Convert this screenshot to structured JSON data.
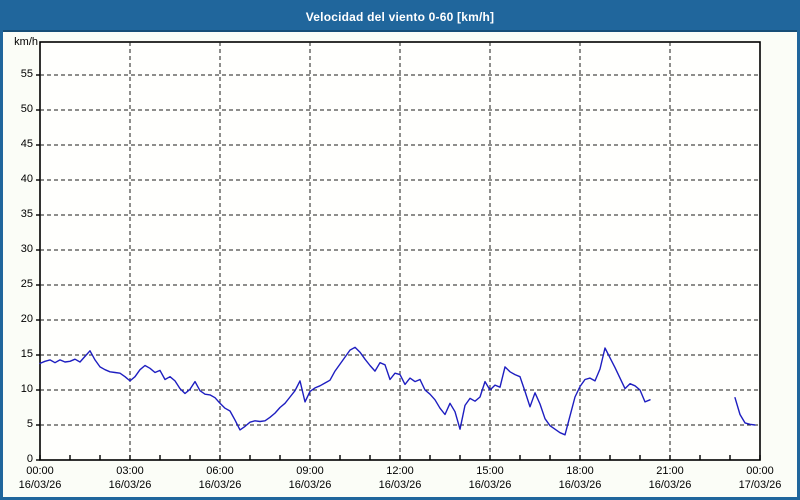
{
  "window": {
    "title": "Velocidad del viento 0-60 [km/h]"
  },
  "colors": {
    "frame": "#20669c",
    "titlebar": "#20669c",
    "titlebar_edge": "#174e77",
    "content_background": "#fbfdf7",
    "plot_background": "#fffffd",
    "axis": "#000000",
    "grid": "#1c1c1c",
    "line": "#1e1ec0",
    "label": "#000000",
    "title_text": "#ffffff"
  },
  "chart_data": {
    "type": "line",
    "title": "Velocidad del viento 0-60 [km/h]",
    "ylabel": "km/h",
    "xlabel": "",
    "ylim": [
      0,
      60
    ],
    "y_ticks": [
      0,
      5,
      10,
      15,
      20,
      25,
      30,
      35,
      40,
      45,
      50,
      55
    ],
    "x_hours_span": 24,
    "x_major_ticks": [
      {
        "time": "00:00",
        "date": "16/03/26"
      },
      {
        "time": "03:00",
        "date": "16/03/26"
      },
      {
        "time": "06:00",
        "date": "16/03/26"
      },
      {
        "time": "09:00",
        "date": "16/03/26"
      },
      {
        "time": "12:00",
        "date": "16/03/26"
      },
      {
        "time": "15:00",
        "date": "16/03/26"
      },
      {
        "time": "18:00",
        "date": "16/03/26"
      },
      {
        "time": "21:00",
        "date": "16/03/26"
      },
      {
        "time": "00:00",
        "date": "17/03/26"
      }
    ],
    "minor_tick_interval_hours": 1,
    "grid": "dashed horizontal every 5 km/h, dashed vertical every 3 h",
    "legend": "none",
    "sample_interval_minutes": 10,
    "series": [
      {
        "name": "Velocidad del viento [km/h]",
        "values": [
          13.8,
          14.1,
          14.3,
          13.9,
          14.3,
          14.0,
          14.1,
          14.4,
          14.0,
          14.8,
          15.6,
          14.3,
          13.3,
          12.9,
          12.6,
          12.5,
          12.4,
          11.9,
          11.3,
          11.9,
          12.9,
          13.5,
          13.1,
          12.5,
          12.8,
          11.5,
          11.9,
          11.3,
          10.2,
          9.5,
          10.1,
          11.2,
          9.9,
          9.4,
          9.3,
          8.9,
          8.1,
          7.4,
          7.0,
          5.7,
          4.3,
          4.8,
          5.4,
          5.6,
          5.5,
          5.6,
          6.1,
          6.7,
          7.5,
          8.1,
          9.0,
          9.9,
          11.3,
          8.3,
          9.8,
          10.3,
          10.6,
          11.0,
          11.4,
          12.7,
          13.7,
          14.7,
          15.7,
          16.1,
          15.4,
          14.4,
          13.5,
          12.7,
          13.9,
          13.6,
          11.5,
          12.4,
          12.2,
          10.8,
          11.7,
          11.2,
          11.5,
          10.0,
          9.4,
          8.6,
          7.4,
          6.5,
          8.1,
          6.9,
          4.4,
          7.8,
          8.8,
          8.4,
          9.0,
          11.2,
          10.0,
          10.7,
          10.4,
          13.3,
          12.6,
          12.2,
          11.9,
          9.8,
          7.6,
          9.6,
          8.0,
          5.9,
          4.9,
          4.4,
          3.9,
          3.6,
          6.3,
          9.0,
          10.5,
          11.5,
          11.7,
          11.3,
          13.0,
          16.0,
          14.6,
          13.2,
          11.7,
          10.2,
          10.9,
          10.6,
          10.0,
          8.3,
          8.6,
          null,
          null,
          null,
          null,
          null,
          null,
          null,
          null,
          null,
          null,
          null,
          null,
          null,
          null,
          null,
          null,
          8.9,
          6.5,
          5.3,
          5.1,
          5.0
        ]
      }
    ]
  }
}
